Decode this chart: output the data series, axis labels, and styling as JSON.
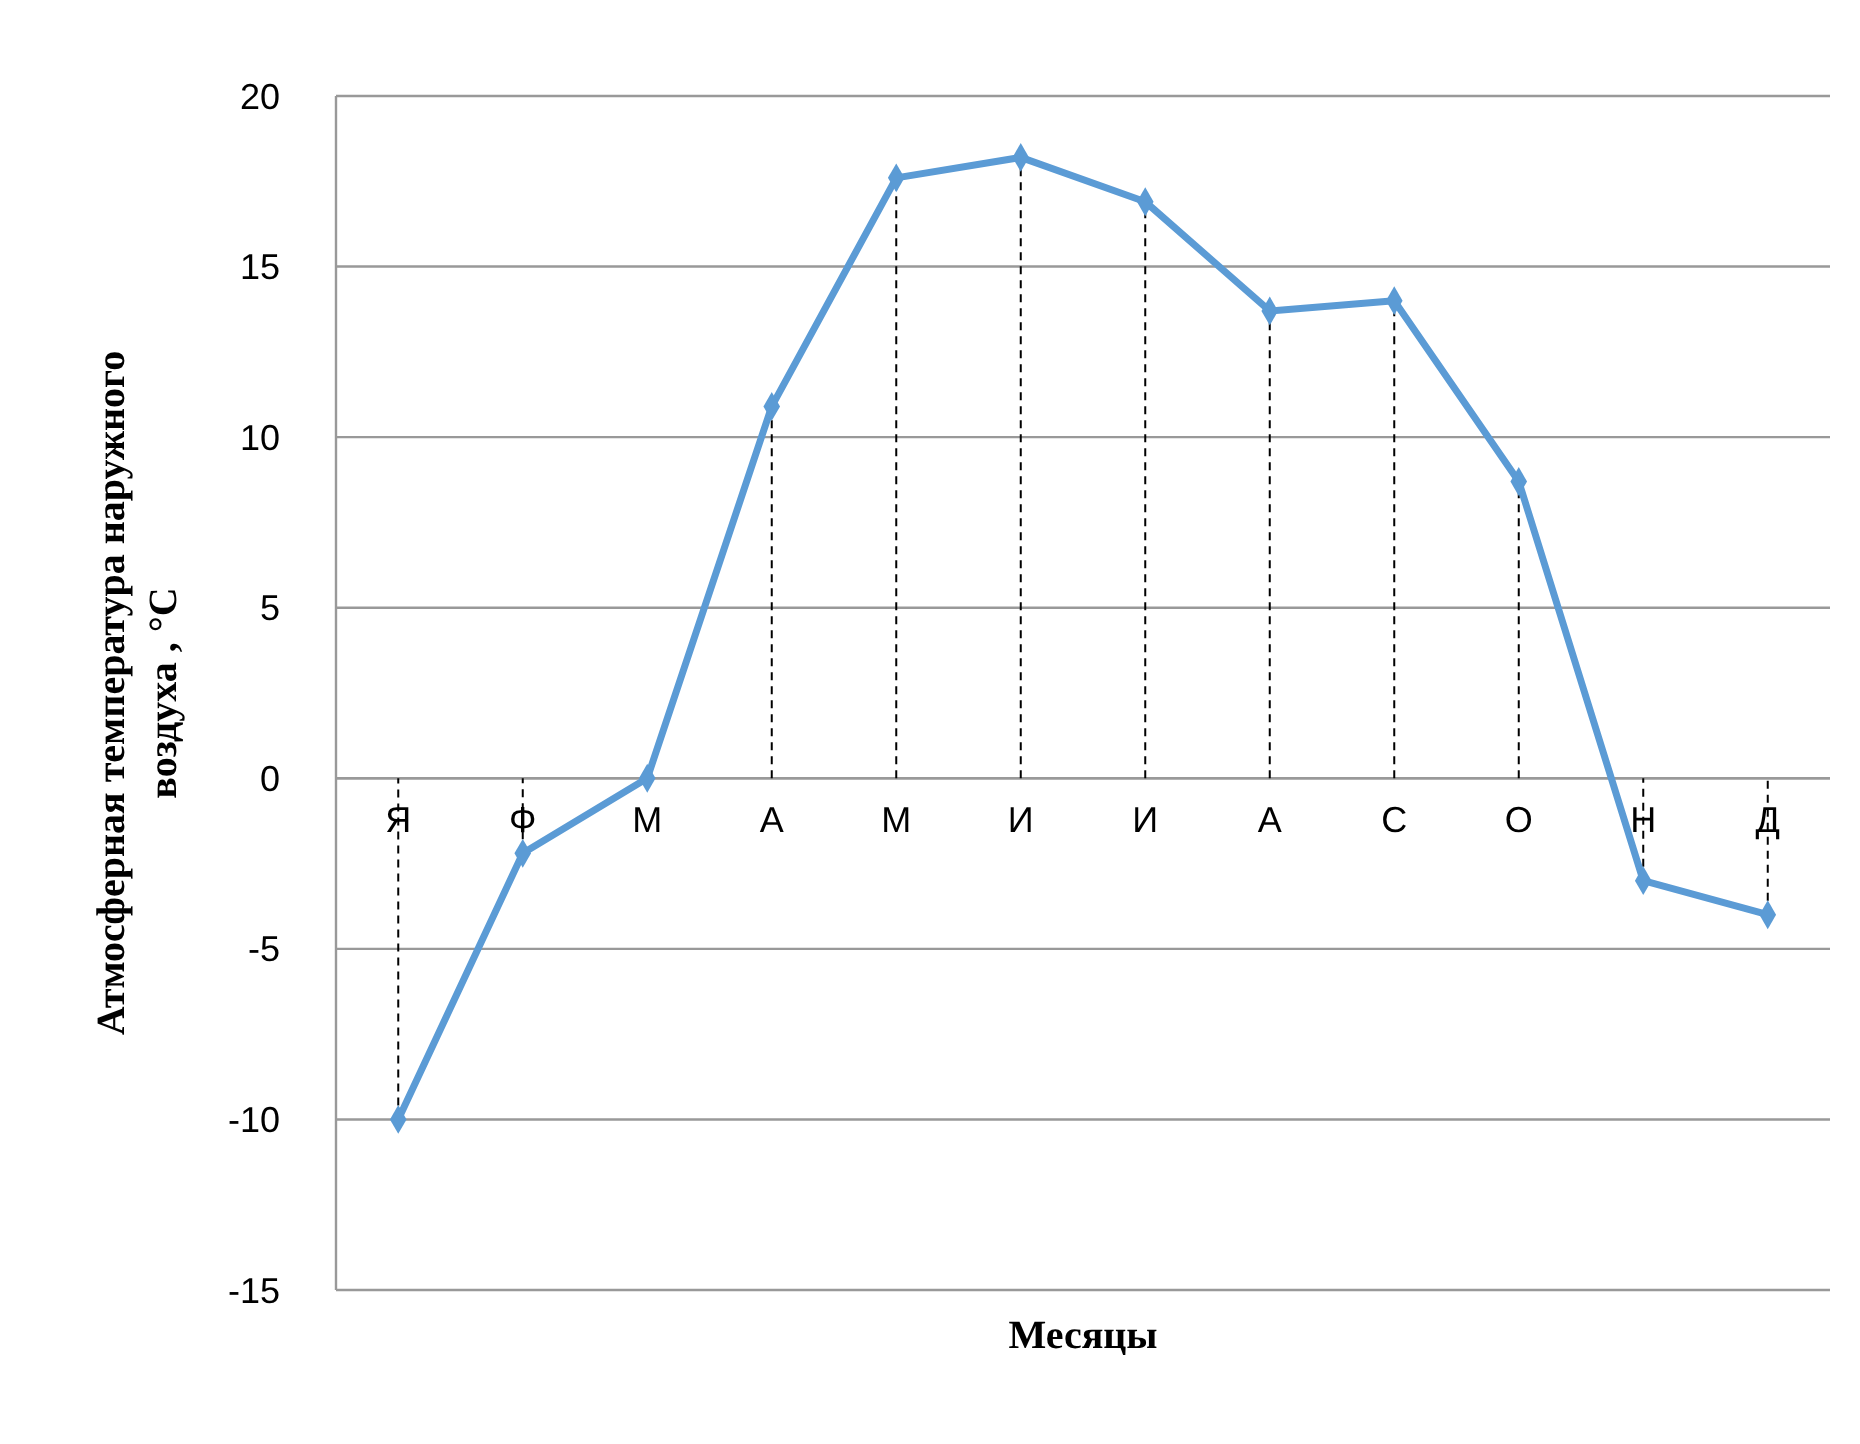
{
  "chart_data": {
    "type": "line",
    "xlabel": "Месяцы",
    "ylabel": "Атмосферная температура наружного\nвоздуха , °C",
    "categories": [
      "Я",
      "Ф",
      "М",
      "А",
      "М",
      "И",
      "И",
      "А",
      "С",
      "О",
      "Н",
      "Д"
    ],
    "series": [
      {
        "color": "#5b9bd5",
        "values": [
          -10,
          -2.2,
          0,
          10.9,
          17.6,
          18.2,
          16.9,
          13.7,
          14,
          8.7,
          -3,
          -4
        ],
        "errors": [
          [
            -10,
            0
          ],
          [
            -2.2,
            0
          ],
          null,
          [
            0,
            10.9
          ],
          [
            0,
            17.6
          ],
          [
            0,
            18.2
          ],
          [
            0,
            16.9
          ],
          [
            0,
            13.7
          ],
          [
            0,
            14
          ],
          [
            0,
            8.7
          ],
          [
            -3,
            0
          ],
          [
            -4,
            0
          ]
        ]
      }
    ],
    "ylim": [
      -15,
      20
    ],
    "yticks": [
      -15,
      -10,
      -5,
      0,
      5,
      10,
      15,
      20
    ],
    "grid": "y",
    "marker": "diamond",
    "line_style": "solid"
  }
}
